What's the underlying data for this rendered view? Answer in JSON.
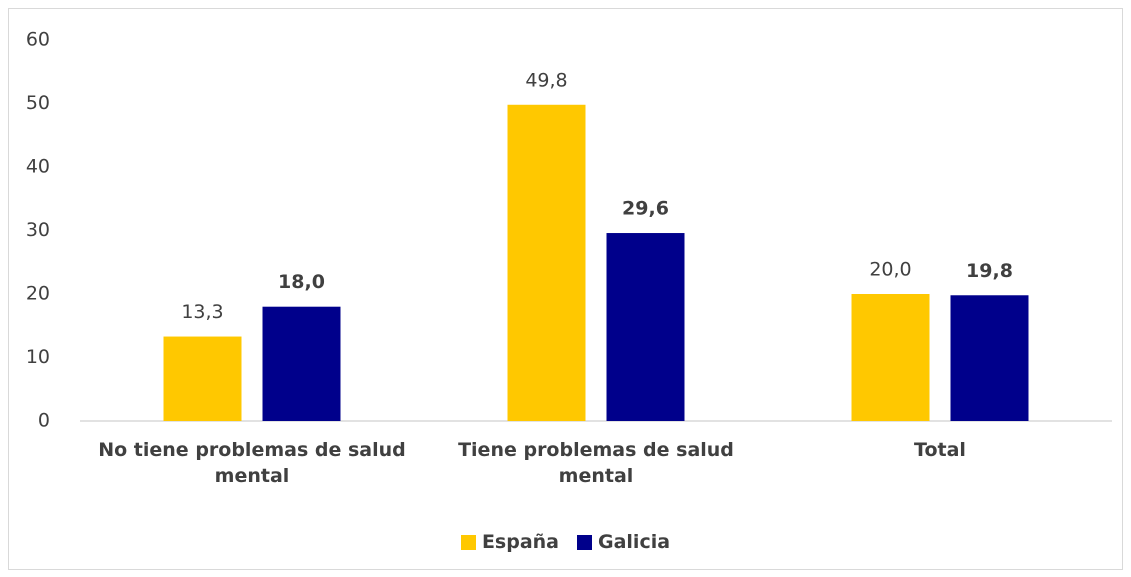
{
  "chart_data": {
    "type": "bar",
    "categories": [
      "No tiene problemas de salud mental",
      "Tiene problemas de salud mental",
      "Total"
    ],
    "series": [
      {
        "name": "España",
        "color": "#ffc800",
        "values": [
          13.3,
          49.8,
          20.0
        ],
        "value_labels": [
          "13,3",
          "49,8",
          "20,0"
        ],
        "label_weight": "normal"
      },
      {
        "name": "Galicia",
        "color": "#00008b",
        "values": [
          18.0,
          29.6,
          19.8
        ],
        "value_labels": [
          "18,0",
          "29,6",
          "19,8"
        ],
        "label_weight": "bold"
      }
    ],
    "ylim": [
      0,
      60
    ],
    "yticks": [
      0,
      10,
      20,
      30,
      40,
      50,
      60
    ],
    "grid": false,
    "legend": "bottom"
  }
}
